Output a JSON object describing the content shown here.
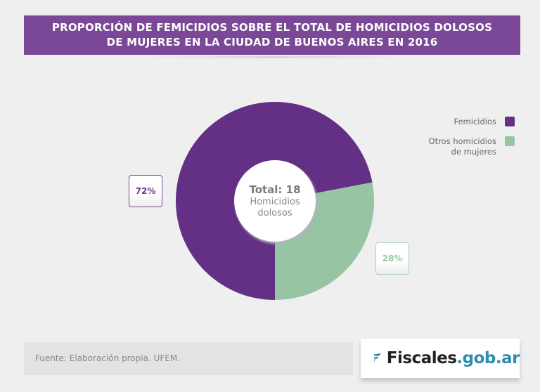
{
  "title": {
    "line1": "PROPORCIÓN DE FEMICIDIOS SOBRE EL TOTAL DE HOMICIDIOS DOLOSOS",
    "line2": "DE MUJERES EN LA CIUDAD DE BUENOS AIRES EN 2016"
  },
  "chart_data": {
    "type": "pie",
    "title": "PROPORCIÓN DE FEMICIDIOS SOBRE EL TOTAL DE HOMICIDIOS DOLOSOS DE MUJERES EN LA CIUDAD DE BUENOS AIRES EN 2016",
    "donut": true,
    "center_label": {
      "total": "Total: 18",
      "line1": "Homicidios",
      "line2": "dolosos"
    },
    "categories": [
      "Femicidios",
      "Otros homicidios de mujeres"
    ],
    "values": [
      72,
      28
    ],
    "data_labels": [
      "72%",
      "28%"
    ],
    "colors": [
      "#633085",
      "#97c4a3"
    ],
    "legend_placement": "right",
    "legend": [
      {
        "line1": "Femicidios",
        "line2": ""
      },
      {
        "line1": "Otros homicidios",
        "line2": "de mujeres"
      }
    ]
  },
  "footer": {
    "source": "Fuente: Elaboración propia. UFEM.",
    "logo_part1": "Fiscales",
    "logo_part2": ".gob.ar"
  },
  "colors": {
    "title_bg": "#7a4896",
    "logo_blue": "#2f8db0"
  }
}
